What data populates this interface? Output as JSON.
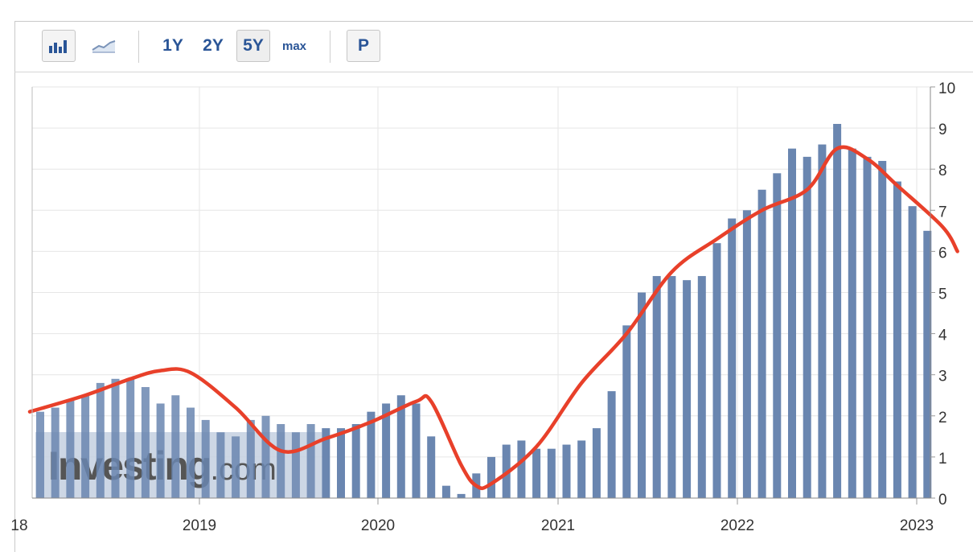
{
  "toolbar": {
    "bar_chart_icon": "bar-chart-icon",
    "line_chart_icon": "line-chart-icon",
    "range_1y": "1Y",
    "range_2y": "2Y",
    "range_5y": "5Y",
    "range_max": "max",
    "p_button": "P",
    "active_range": "5Y"
  },
  "watermark": {
    "brand": "Investing",
    "suffix": ".com"
  },
  "colors": {
    "bars": "#6a86b0",
    "line": "#e8402a",
    "grid": "#e6e6e6",
    "axis_text": "#333333"
  },
  "chart_data": {
    "type": "bar",
    "ylim": [
      0,
      10
    ],
    "y_ticks": [
      0,
      1,
      2,
      3,
      4,
      5,
      6,
      7,
      8,
      9,
      10
    ],
    "x_tick_labels": [
      "18",
      "2019",
      "2020",
      "2021",
      "2022",
      "2023"
    ],
    "grid": true,
    "y_axis_side": "right",
    "series": [
      {
        "type": "bar",
        "x_start": "2018-01",
        "values": [
          2.1,
          2.2,
          2.4,
          2.5,
          2.8,
          2.9,
          2.9,
          2.7,
          2.3,
          2.5,
          2.2,
          1.9,
          1.6,
          1.5,
          1.9,
          2.0,
          1.8,
          1.6,
          1.8,
          1.7,
          1.7,
          1.8,
          2.1,
          2.3,
          2.5,
          2.3,
          1.5,
          0.3,
          0.1,
          0.6,
          1.0,
          1.3,
          1.4,
          1.2,
          1.2,
          1.3,
          1.4,
          1.7,
          2.6,
          4.2,
          5.0,
          5.4,
          5.4,
          5.3,
          5.4,
          6.2,
          6.8,
          7.0,
          7.5,
          7.9,
          8.5,
          8.3,
          8.6,
          9.1,
          8.5,
          8.3,
          8.2,
          7.7,
          7.1,
          6.5
        ]
      },
      {
        "type": "line",
        "points": [
          {
            "x": "2018-01",
            "y": 2.1
          },
          {
            "x": "2018-04",
            "y": 2.5
          },
          {
            "x": "2018-07",
            "y": 2.9
          },
          {
            "x": "2018-09",
            "y": 3.1
          },
          {
            "x": "2018-11",
            "y": 3.05
          },
          {
            "x": "2019-02",
            "y": 2.2
          },
          {
            "x": "2019-05",
            "y": 1.15
          },
          {
            "x": "2019-08",
            "y": 1.45
          },
          {
            "x": "2019-11",
            "y": 1.85
          },
          {
            "x": "2020-02",
            "y": 2.35
          },
          {
            "x": "2020-03",
            "y": 2.35
          },
          {
            "x": "2020-05",
            "y": 0.8
          },
          {
            "x": "2020-06",
            "y": 0.3
          },
          {
            "x": "2020-07",
            "y": 0.35
          },
          {
            "x": "2020-10",
            "y": 1.25
          },
          {
            "x": "2021-01",
            "y": 2.8
          },
          {
            "x": "2021-04",
            "y": 4.0
          },
          {
            "x": "2021-07",
            "y": 5.5
          },
          {
            "x": "2021-10",
            "y": 6.3
          },
          {
            "x": "2022-01",
            "y": 7.0
          },
          {
            "x": "2022-04",
            "y": 7.5
          },
          {
            "x": "2022-06",
            "y": 8.5
          },
          {
            "x": "2022-08",
            "y": 8.25
          },
          {
            "x": "2022-10",
            "y": 7.6
          },
          {
            "x": "2023-01",
            "y": 6.6
          },
          {
            "x": "2023-02",
            "y": 6.0
          }
        ]
      }
    ]
  }
}
